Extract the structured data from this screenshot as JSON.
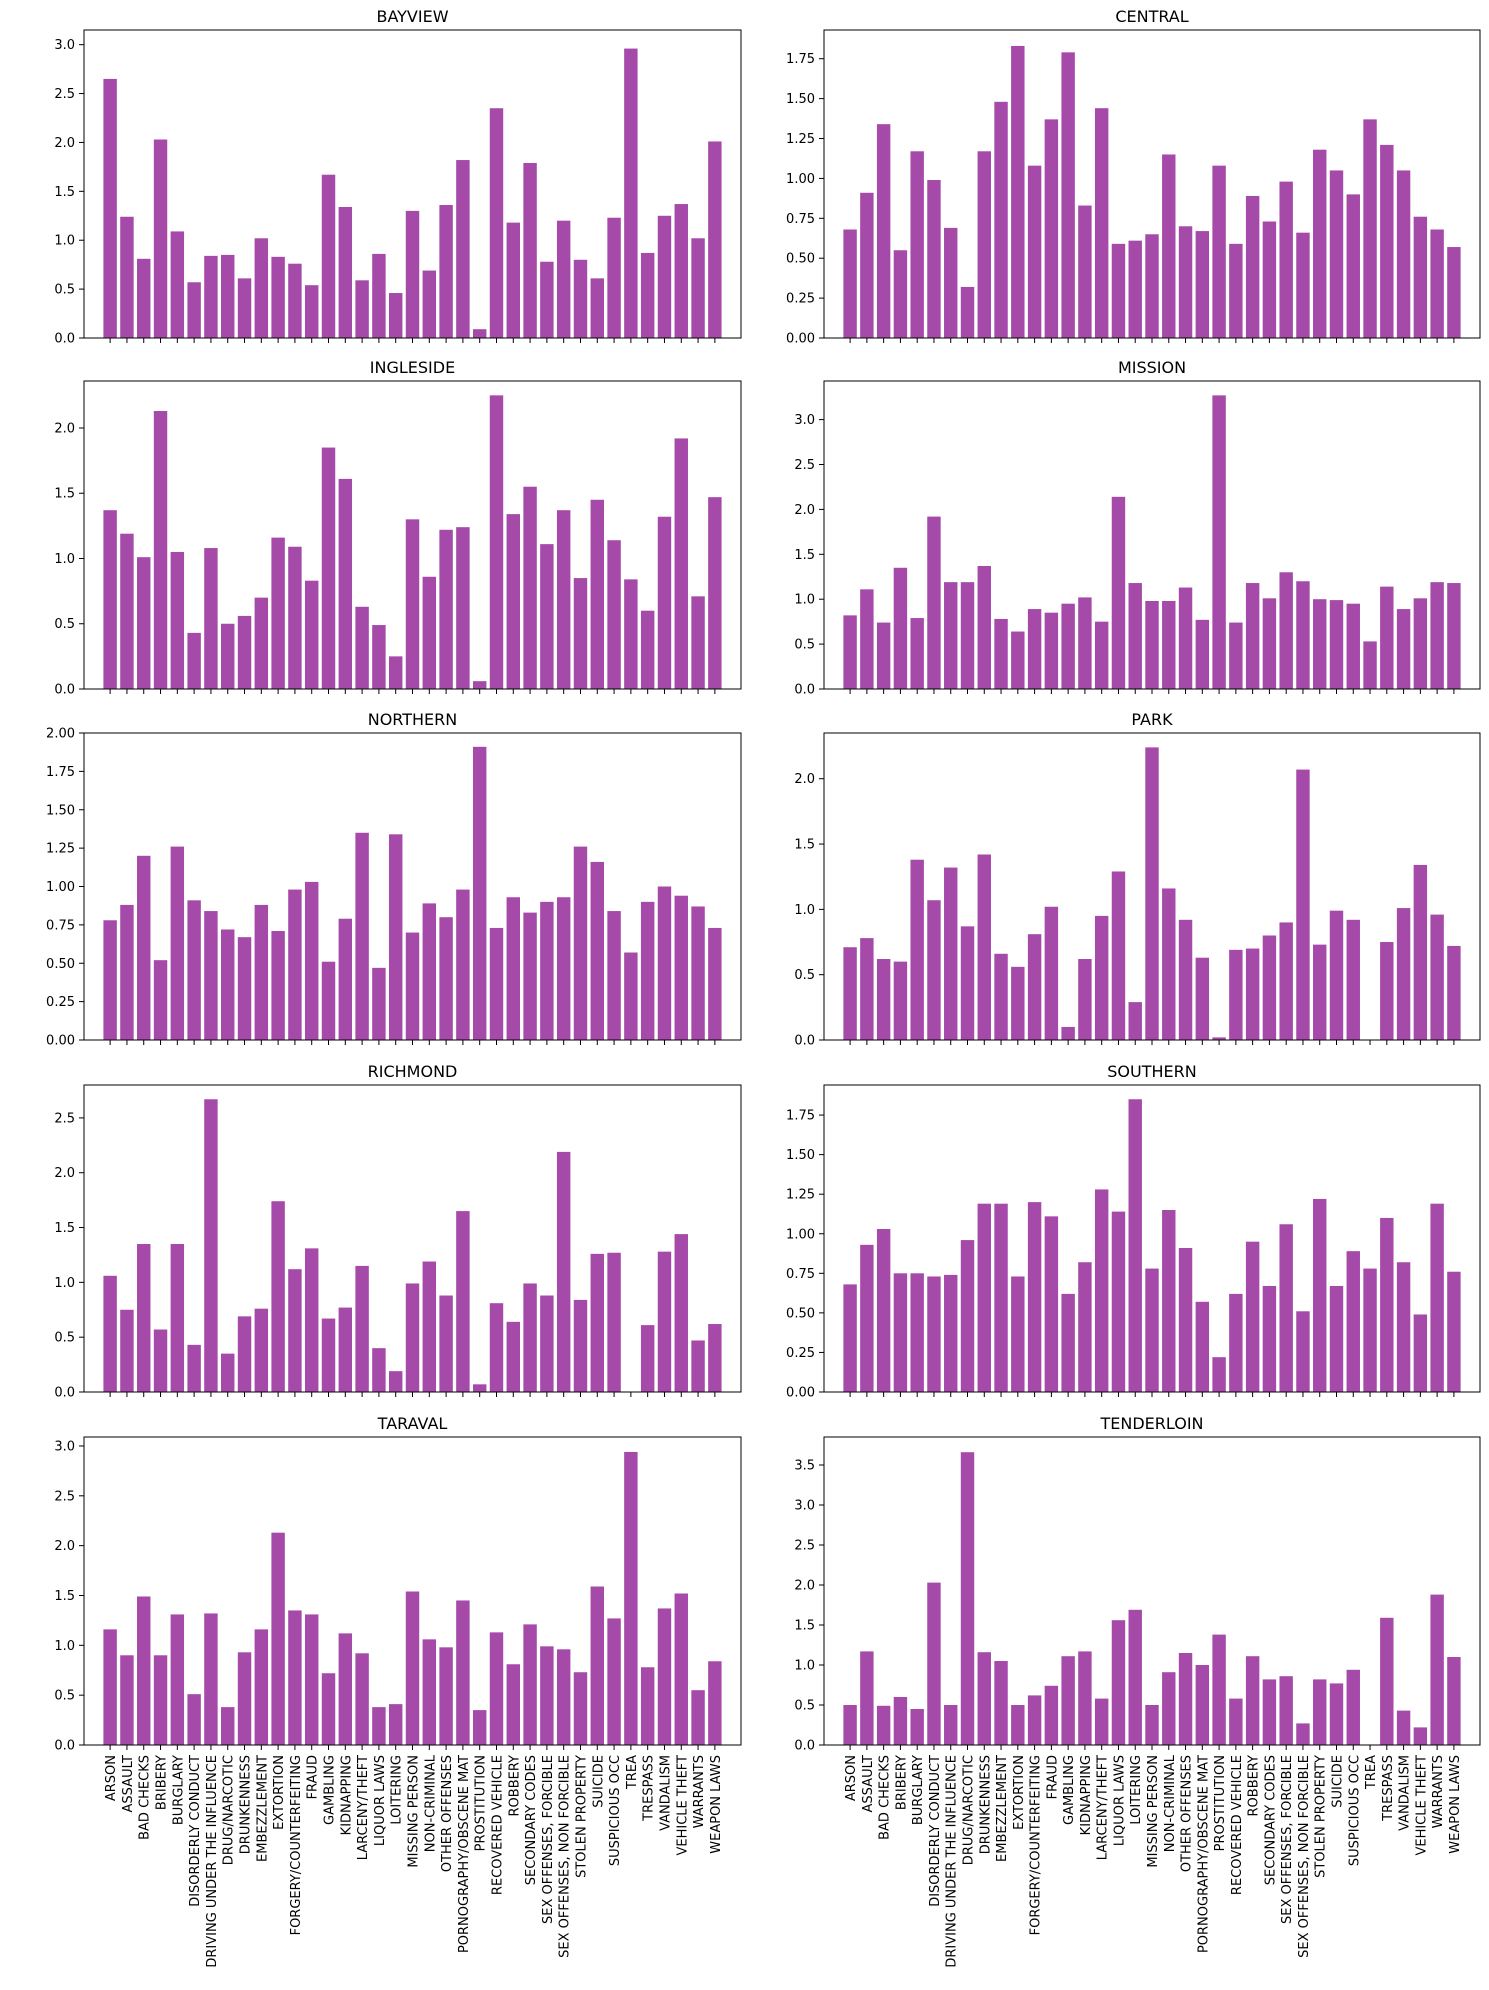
{
  "figure": {
    "bar_color": "#a54aa9",
    "text_color": "#000000",
    "categories": [
      "ARSON",
      "ASSAULT",
      "BAD CHECKS",
      "BRIBERY",
      "BURGLARY",
      "DISORDERLY CONDUCT",
      "DRIVING UNDER THE INFLUENCE",
      "DRUG/NARCOTIC",
      "DRUNKENNESS",
      "EMBEZZLEMENT",
      "EXTORTION",
      "FORGERY/COUNTERFEITING",
      "FRAUD",
      "GAMBLING",
      "KIDNAPPING",
      "LARCENY/THEFT",
      "LIQUOR LAWS",
      "LOITERING",
      "MISSING PERSON",
      "NON-CRIMINAL",
      "OTHER OFFENSES",
      "PORNOGRAPHY/OBSCENE MAT",
      "PROSTITUTION",
      "RECOVERED VEHICLE",
      "ROBBERY",
      "SECONDARY CODES",
      "SEX OFFENSES, FORCIBLE",
      "SEX OFFENSES, NON FORCIBLE",
      "STOLEN PROPERTY",
      "SUICIDE",
      "SUSPICIOUS OCC",
      "TREA",
      "TRESPASS",
      "VANDALISM",
      "VEHICLE THEFT",
      "WARRANTS",
      "WEAPON LAWS"
    ]
  },
  "chart_data": [
    {
      "type": "bar",
      "title": "BAYVIEW",
      "xlabel": "",
      "ylabel": "",
      "ylim": [
        0,
        3.15
      ],
      "yticks": [
        "0.0",
        "0.5",
        "1.0",
        "1.5",
        "2.0",
        "2.5",
        "3.0"
      ],
      "values": [
        2.65,
        1.24,
        0.81,
        2.03,
        1.09,
        0.57,
        0.84,
        0.85,
        0.61,
        1.02,
        0.83,
        0.76,
        0.54,
        1.67,
        1.34,
        0.59,
        0.86,
        0.46,
        1.3,
        0.69,
        1.36,
        1.82,
        0.09,
        2.35,
        1.18,
        1.79,
        0.78,
        1.2,
        0.8,
        0.61,
        1.23,
        2.96,
        0.87,
        1.25,
        1.37,
        1.02,
        2.01
      ]
    },
    {
      "type": "bar",
      "title": "CENTRAL",
      "xlabel": "",
      "ylabel": "",
      "ylim": [
        0,
        1.93
      ],
      "yticks": [
        "0.00",
        "0.25",
        "0.50",
        "0.75",
        "1.00",
        "1.25",
        "1.50",
        "1.75"
      ],
      "values": [
        0.68,
        0.91,
        1.34,
        0.55,
        1.17,
        0.99,
        0.69,
        0.32,
        1.17,
        1.48,
        1.83,
        1.08,
        1.37,
        1.79,
        0.83,
        1.44,
        0.59,
        0.61,
        0.65,
        1.15,
        0.7,
        0.67,
        1.08,
        0.59,
        0.89,
        0.73,
        0.98,
        0.66,
        1.18,
        1.05,
        0.9,
        1.37,
        1.21,
        1.05,
        0.76,
        0.68,
        0.57
      ]
    },
    {
      "type": "bar",
      "title": "INGLESIDE",
      "xlabel": "",
      "ylabel": "",
      "ylim": [
        0,
        2.36
      ],
      "yticks": [
        "0.0",
        "0.5",
        "1.0",
        "1.5",
        "2.0"
      ],
      "values": [
        1.37,
        1.19,
        1.01,
        2.13,
        1.05,
        0.43,
        1.08,
        0.5,
        0.56,
        0.7,
        1.16,
        1.09,
        0.83,
        1.85,
        1.61,
        0.63,
        0.49,
        0.25,
        1.3,
        0.86,
        1.22,
        1.24,
        0.06,
        2.25,
        1.34,
        1.55,
        1.11,
        1.37,
        0.85,
        1.45,
        1.14,
        0.84,
        0.6,
        1.32,
        1.92,
        0.71,
        1.47
      ]
    },
    {
      "type": "bar",
      "title": "MISSION",
      "xlabel": "",
      "ylabel": "",
      "ylim": [
        0,
        3.43
      ],
      "yticks": [
        "0.0",
        "0.5",
        "1.0",
        "1.5",
        "2.0",
        "2.5",
        "3.0"
      ],
      "values": [
        0.82,
        1.11,
        0.74,
        1.35,
        0.79,
        1.92,
        1.19,
        1.19,
        1.37,
        0.78,
        0.64,
        0.89,
        0.85,
        0.95,
        1.02,
        0.75,
        2.14,
        1.18,
        0.98,
        0.98,
        1.13,
        0.77,
        3.27,
        0.74,
        1.18,
        1.01,
        1.3,
        1.2,
        1.0,
        0.99,
        0.95,
        0.53,
        1.14,
        0.89,
        1.01,
        1.19,
        1.18
      ]
    },
    {
      "type": "bar",
      "title": "NORTHERN",
      "xlabel": "",
      "ylabel": "",
      "ylim": [
        0,
        2.0
      ],
      "yticks": [
        "0.00",
        "0.25",
        "0.50",
        "0.75",
        "1.00",
        "1.25",
        "1.50",
        "1.75",
        "2.00"
      ],
      "values": [
        0.78,
        0.88,
        1.2,
        0.52,
        1.26,
        0.91,
        0.84,
        0.72,
        0.67,
        0.88,
        0.71,
        0.98,
        1.03,
        0.51,
        0.79,
        1.35,
        0.47,
        1.34,
        0.7,
        0.89,
        0.8,
        0.98,
        1.91,
        0.73,
        0.93,
        0.83,
        0.9,
        0.93,
        1.26,
        1.16,
        0.84,
        0.57,
        0.9,
        1.0,
        0.94,
        0.87,
        0.73
      ]
    },
    {
      "type": "bar",
      "title": "PARK",
      "xlabel": "",
      "ylabel": "",
      "ylim": [
        0,
        2.35
      ],
      "yticks": [
        "0.0",
        "0.5",
        "1.0",
        "1.5",
        "2.0"
      ],
      "values": [
        0.71,
        0.78,
        0.62,
        0.6,
        1.38,
        1.07,
        1.32,
        0.87,
        1.42,
        0.66,
        0.56,
        0.81,
        1.02,
        0.1,
        0.62,
        0.95,
        1.29,
        0.29,
        2.24,
        1.16,
        0.92,
        0.63,
        0.02,
        0.69,
        0.7,
        0.8,
        0.9,
        2.07,
        0.73,
        0.99,
        0.92,
        0.0,
        0.75,
        1.01,
        1.34,
        0.96,
        0.72
      ]
    },
    {
      "type": "bar",
      "title": "RICHMOND",
      "xlabel": "",
      "ylabel": "",
      "ylim": [
        0,
        2.8
      ],
      "yticks": [
        "0.0",
        "0.5",
        "1.0",
        "1.5",
        "2.0",
        "2.5"
      ],
      "values": [
        1.06,
        0.75,
        1.35,
        0.57,
        1.35,
        0.43,
        2.67,
        0.35,
        0.69,
        0.76,
        1.74,
        1.12,
        1.31,
        0.67,
        0.77,
        1.15,
        0.4,
        0.19,
        0.99,
        1.19,
        0.88,
        1.65,
        0.07,
        0.81,
        0.64,
        0.99,
        0.88,
        2.19,
        0.84,
        1.26,
        1.27,
        0.0,
        0.61,
        1.28,
        1.44,
        0.47,
        0.62
      ]
    },
    {
      "type": "bar",
      "title": "SOUTHERN",
      "xlabel": "",
      "ylabel": "",
      "ylim": [
        0,
        1.94
      ],
      "yticks": [
        "0.00",
        "0.25",
        "0.50",
        "0.75",
        "1.00",
        "1.25",
        "1.50",
        "1.75"
      ],
      "values": [
        0.68,
        0.93,
        1.03,
        0.75,
        0.75,
        0.73,
        0.74,
        0.96,
        1.19,
        1.19,
        0.73,
        1.2,
        1.11,
        0.62,
        0.82,
        1.28,
        1.14,
        1.85,
        0.78,
        1.15,
        0.91,
        0.57,
        0.22,
        0.62,
        0.95,
        0.67,
        1.06,
        0.51,
        1.22,
        0.67,
        0.89,
        0.78,
        1.1,
        0.82,
        0.49,
        1.19,
        0.76
      ]
    },
    {
      "type": "bar",
      "title": "TARAVAL",
      "xlabel": "",
      "ylabel": "",
      "ylim": [
        0,
        3.09
      ],
      "yticks": [
        "0.0",
        "0.5",
        "1.0",
        "1.5",
        "2.0",
        "2.5",
        "3.0"
      ],
      "values": [
        1.16,
        0.9,
        1.49,
        0.9,
        1.31,
        0.51,
        1.32,
        0.38,
        0.93,
        1.16,
        2.13,
        1.35,
        1.31,
        0.72,
        1.12,
        0.92,
        0.38,
        0.41,
        1.54,
        1.06,
        0.98,
        1.45,
        0.35,
        1.13,
        0.81,
        1.21,
        0.99,
        0.96,
        0.73,
        1.59,
        1.27,
        2.94,
        0.78,
        1.37,
        1.52,
        0.55,
        0.84
      ]
    },
    {
      "type": "bar",
      "title": "TENDERLOIN",
      "xlabel": "",
      "ylabel": "",
      "ylim": [
        0,
        3.85
      ],
      "yticks": [
        "0.0",
        "0.5",
        "1.0",
        "1.5",
        "2.0",
        "2.5",
        "3.0",
        "3.5"
      ],
      "values": [
        0.5,
        1.17,
        0.49,
        0.6,
        0.45,
        2.03,
        0.5,
        3.66,
        1.16,
        1.05,
        0.5,
        0.62,
        0.74,
        1.11,
        1.17,
        0.58,
        1.56,
        1.69,
        0.5,
        0.91,
        1.15,
        1.0,
        1.38,
        0.58,
        1.11,
        0.82,
        0.86,
        0.27,
        0.82,
        0.77,
        0.94,
        0.0,
        1.59,
        0.43,
        0.22,
        1.88,
        1.1
      ]
    }
  ]
}
